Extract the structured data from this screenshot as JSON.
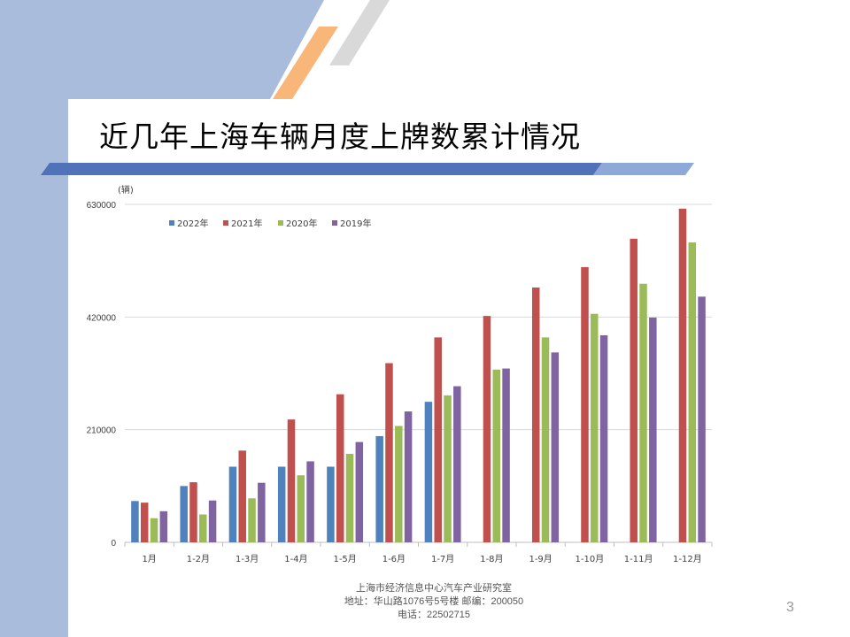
{
  "slide": {
    "title": "近几年上海车辆月度上牌数累计情况",
    "page_number": "3",
    "footer": {
      "line1": "上海市经济信息中心汽车产业研究室",
      "line2": "地址：华山路1076号5号楼   邮编：200050",
      "line3": "电话：22502715"
    }
  },
  "colors": {
    "band": "#a9bcdc",
    "stripe_orange": "#f9b679",
    "stripe_gray": "#d9d9d9",
    "bar_dark": "#4f72b9",
    "bar_light": "#8ea9d8"
  },
  "chart_data": {
    "type": "bar",
    "unit_label": "(辆)",
    "categories": [
      "1月",
      "1-2月",
      "1-3月",
      "1-4月",
      "1-5月",
      "1-6月",
      "1-7月",
      "1-8月",
      "1-9月",
      "1-10月",
      "1-11月",
      "1-12月"
    ],
    "series": [
      {
        "name": "2022年",
        "color": "#4f81bd",
        "values": [
          77000,
          105000,
          141000,
          141000,
          141000,
          198000,
          262000,
          null,
          null,
          null,
          null,
          null
        ]
      },
      {
        "name": "2021年",
        "color": "#c0504d",
        "values": [
          74000,
          112000,
          171000,
          229000,
          276000,
          334000,
          382000,
          422000,
          475000,
          513000,
          566000,
          622000
        ]
      },
      {
        "name": "2020年",
        "color": "#9bbb59",
        "values": [
          45000,
          52000,
          82000,
          125000,
          165000,
          217000,
          274000,
          322000,
          382000,
          426000,
          482000,
          559000
        ]
      },
      {
        "name": "2019年",
        "color": "#8064a2",
        "values": [
          58000,
          78000,
          111000,
          151000,
          187000,
          244000,
          291000,
          324000,
          354000,
          386000,
          419000,
          458000
        ]
      }
    ],
    "yticks": [
      "0",
      "210000",
      "420000",
      "630000"
    ],
    "ylim": [
      0,
      630000
    ],
    "grid": true,
    "legend": "top-left"
  }
}
